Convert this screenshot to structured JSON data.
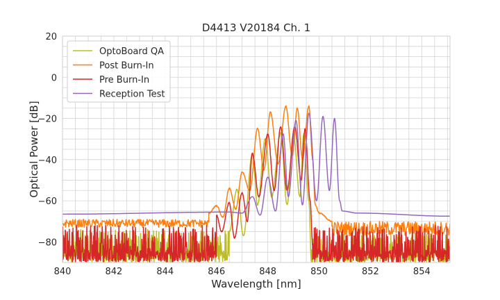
{
  "chart_data": {
    "type": "line",
    "title": "D4413 V20184 Ch. 1",
    "xlabel": "Wavelength [nm]",
    "ylabel": "Optical Power [dB]",
    "xlim": [
      840,
      855.1
    ],
    "ylim": [
      -90,
      20
    ],
    "xticks": [
      840,
      842,
      844,
      846,
      848,
      850,
      852,
      854
    ],
    "yticks": [
      20,
      0,
      -20,
      -40,
      -60,
      -80
    ],
    "xtick_labels": [
      "840",
      "842",
      "844",
      "846",
      "848",
      "850",
      "852",
      "854"
    ],
    "ytick_labels": [
      "20",
      "0",
      "−20",
      "−40",
      "−60",
      "−80"
    ],
    "grid": true,
    "legend_position": "top-left",
    "series": [
      {
        "name": "OptoBoard QA",
        "color": "#bcbd22",
        "noise": [
          [
            840,
            846.5,
            -90,
            -74
          ],
          [
            849.7,
            855.1,
            -90,
            -76
          ]
        ],
        "points": [
          [
            846.5,
            -75
          ],
          [
            846.8,
            -54.5
          ],
          [
            847.05,
            -77
          ],
          [
            847.4,
            -37
          ],
          [
            847.6,
            -62
          ],
          [
            847.9,
            -30
          ],
          [
            848.15,
            -58
          ],
          [
            848.5,
            -27
          ],
          [
            848.75,
            -62
          ],
          [
            849.0,
            -27.5
          ],
          [
            849.25,
            -58
          ],
          [
            849.4,
            -27.5
          ],
          [
            849.6,
            -60
          ],
          [
            849.7,
            -90
          ]
        ]
      },
      {
        "name": "Post Burn-In",
        "color": "#ff7f0e",
        "noise": [
          [
            840,
            845.7,
            -73,
            -69
          ],
          [
            850.5,
            855.1,
            -77,
            -70
          ]
        ],
        "points": [
          [
            845.7,
            -66
          ],
          [
            846.0,
            -62.5
          ],
          [
            846.25,
            -68
          ],
          [
            846.5,
            -54
          ],
          [
            846.75,
            -64
          ],
          [
            847.0,
            -46
          ],
          [
            847.3,
            -55
          ],
          [
            847.6,
            -25
          ],
          [
            847.85,
            -45
          ],
          [
            848.1,
            -17
          ],
          [
            848.4,
            -42
          ],
          [
            848.7,
            -14
          ],
          [
            848.95,
            -38
          ],
          [
            849.15,
            -15
          ],
          [
            849.35,
            -40
          ],
          [
            849.6,
            -14
          ],
          [
            849.75,
            -40
          ],
          [
            849.85,
            -62
          ],
          [
            850.0,
            -66
          ],
          [
            850.5,
            -70
          ]
        ]
      },
      {
        "name": "Pre Burn-In",
        "color": "#d62728",
        "noise": [
          [
            840,
            846.0,
            -90,
            -72
          ],
          [
            849.75,
            855.1,
            -90,
            -72
          ]
        ],
        "points": [
          [
            846.0,
            -67
          ],
          [
            846.2,
            -75
          ],
          [
            846.5,
            -61
          ],
          [
            846.7,
            -78
          ],
          [
            847.0,
            -56
          ],
          [
            847.2,
            -70
          ],
          [
            847.4,
            -37
          ],
          [
            847.65,
            -58
          ],
          [
            848.0,
            -27.5
          ],
          [
            848.25,
            -55
          ],
          [
            848.5,
            -24
          ],
          [
            848.75,
            -55
          ],
          [
            849.05,
            -24
          ],
          [
            849.3,
            -50
          ],
          [
            849.45,
            -25
          ],
          [
            849.65,
            -60
          ],
          [
            849.75,
            -82
          ]
        ]
      },
      {
        "name": "Reception Test",
        "color": "#9467bd",
        "noise": [],
        "points": [
          [
            840,
            -66.5
          ],
          [
            846.5,
            -65.5
          ],
          [
            847.0,
            -66
          ],
          [
            847.4,
            -58
          ],
          [
            847.7,
            -67
          ],
          [
            848.0,
            -48.5
          ],
          [
            848.3,
            -65
          ],
          [
            848.6,
            -27.5
          ],
          [
            848.8,
            -58
          ],
          [
            849.1,
            -21
          ],
          [
            849.35,
            -62
          ],
          [
            849.6,
            -17.5
          ],
          [
            849.9,
            -60
          ],
          [
            850.15,
            -19
          ],
          [
            850.4,
            -55
          ],
          [
            850.6,
            -20
          ],
          [
            850.8,
            -60
          ],
          [
            850.9,
            -65
          ],
          [
            851.5,
            -66
          ],
          [
            855.1,
            -67.5
          ]
        ]
      }
    ]
  }
}
